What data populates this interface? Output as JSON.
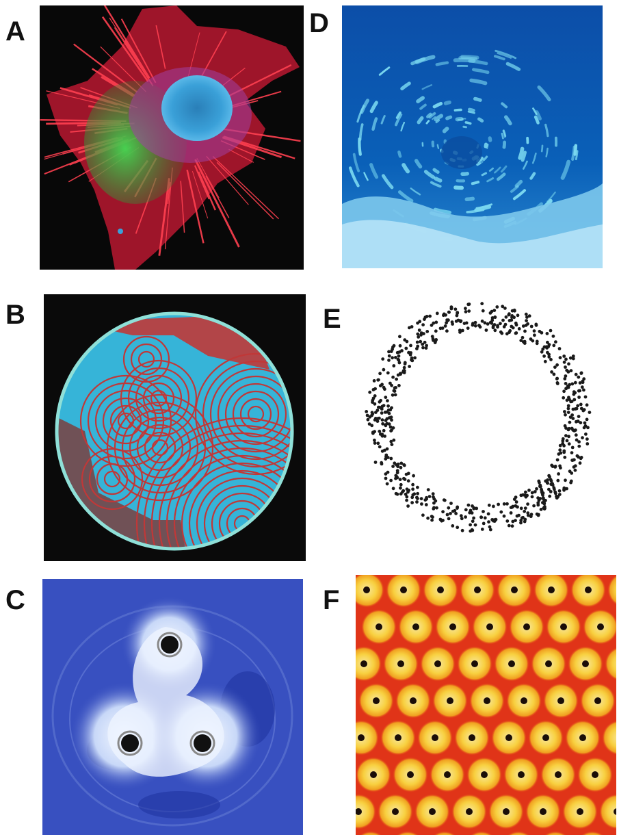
{
  "figure": {
    "panels": [
      {
        "letter": "A",
        "subject": "fluorescence-microscopy-cell",
        "colors": {
          "background": "#080808",
          "actin": "#e8283a",
          "tubulin": "#38c048",
          "nucleus": "#3aa0d8"
        }
      },
      {
        "letter": "B",
        "subject": "target-pattern-petri-dish",
        "colors": {
          "background": "#0a0a0a",
          "medium": "#36b4d8",
          "ring": "#c03838",
          "rim": "#8fe0d8"
        }
      },
      {
        "letter": "C",
        "subject": "three-vortex-pattern",
        "colors": {
          "background": "#3850c0",
          "core": "#eef4ff"
        }
      },
      {
        "letter": "D",
        "subject": "underwater-fish-school-vortex",
        "colors": {
          "water": "#0a60b8",
          "fish": "#7ad8f0"
        }
      },
      {
        "letter": "E",
        "subject": "simulated-particle-ring",
        "colors": {
          "background": "#ffffff",
          "particle": "#1a1a1a"
        }
      },
      {
        "letter": "F",
        "subject": "hexagonal-spot-lattice",
        "colors": {
          "background": "#e03418",
          "spot": "#f8d040",
          "center": "#1a0e08"
        }
      }
    ]
  }
}
